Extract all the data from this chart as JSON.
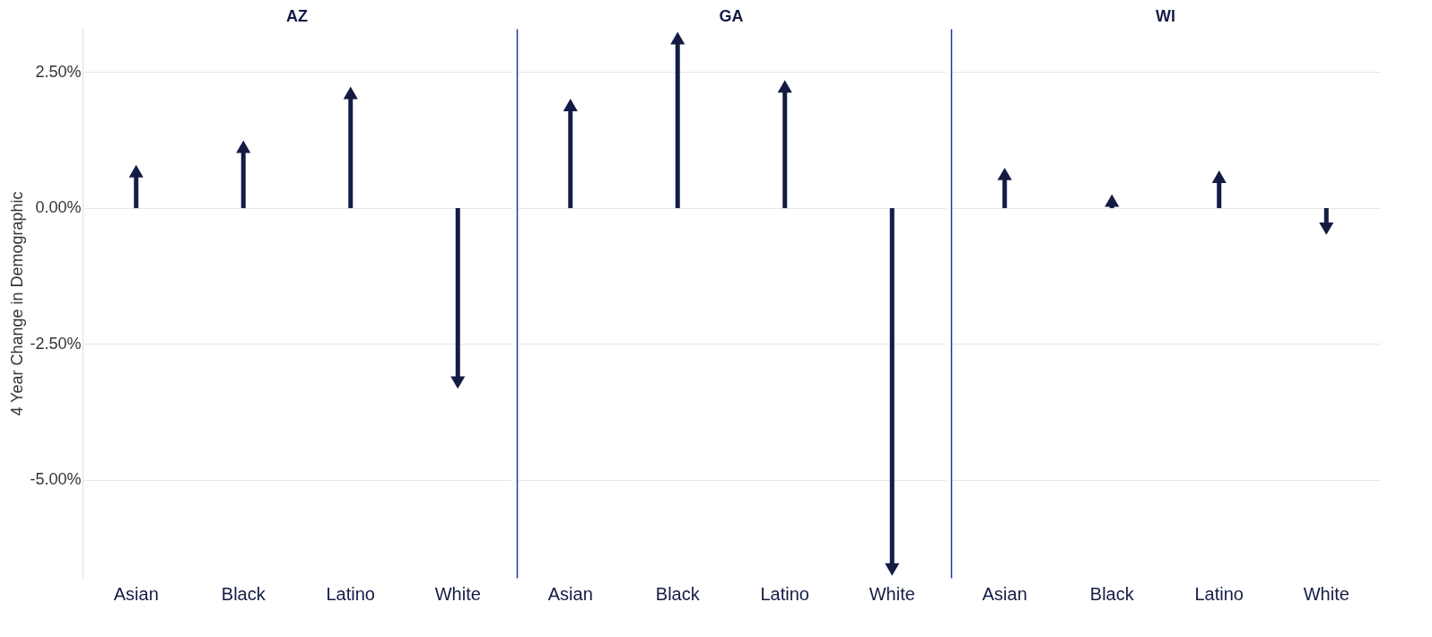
{
  "chart_data": [
    {
      "type": "lollipop",
      "title": "AZ",
      "ylabel": "4 Year Change in Demographic",
      "categories": [
        "Asian",
        "Black",
        "Latino",
        "White"
      ],
      "marker": "triangle",
      "grid": "y",
      "series": [
        {
          "color": "#141c44",
          "values": [
            0.64,
            1.09,
            2.08,
            -3.17
          ]
        }
      ],
      "ylim": [
        -6.8,
        3.3
      ],
      "yticks": [
        {
          "value": -5,
          "label": "-5.00%"
        },
        {
          "value": -2.5,
          "label": "-2.50%"
        },
        {
          "value": 0,
          "label": "0.00%"
        },
        {
          "value": 2.5,
          "label": "2.50%"
        }
      ]
    },
    {
      "type": "lollipop",
      "title": "GA",
      "categories": [
        "Asian",
        "Black",
        "Latino",
        "White"
      ],
      "marker": "triangle",
      "grid": "y",
      "tick_labels": "x",
      "series": [
        {
          "color": "#141c44",
          "values": [
            1.86,
            3.09,
            2.2,
            -6.61
          ]
        }
      ],
      "ylim": [
        -6.8,
        3.3
      ],
      "yticks": [
        {
          "value": -5,
          "label": null
        },
        {
          "value": -2.5,
          "label": null
        },
        {
          "value": 0,
          "label": null
        },
        {
          "value": 2.5,
          "label": null
        }
      ]
    },
    {
      "type": "lollipop",
      "title": "WI",
      "categories": [
        "Asian",
        "Black",
        "Latino",
        "White"
      ],
      "marker": "triangle",
      "grid": "y",
      "tick_labels": "x",
      "series": [
        {
          "color": "#141c44",
          "values": [
            0.59,
            0.1,
            0.54,
            -0.34
          ]
        }
      ],
      "ylim": [
        -6.8,
        3.3
      ],
      "yticks": [
        {
          "value": -5,
          "label": null
        },
        {
          "value": -2.5,
          "label": null
        },
        {
          "value": 0,
          "label": null
        },
        {
          "value": 2.5,
          "label": null
        }
      ]
    }
  ]
}
